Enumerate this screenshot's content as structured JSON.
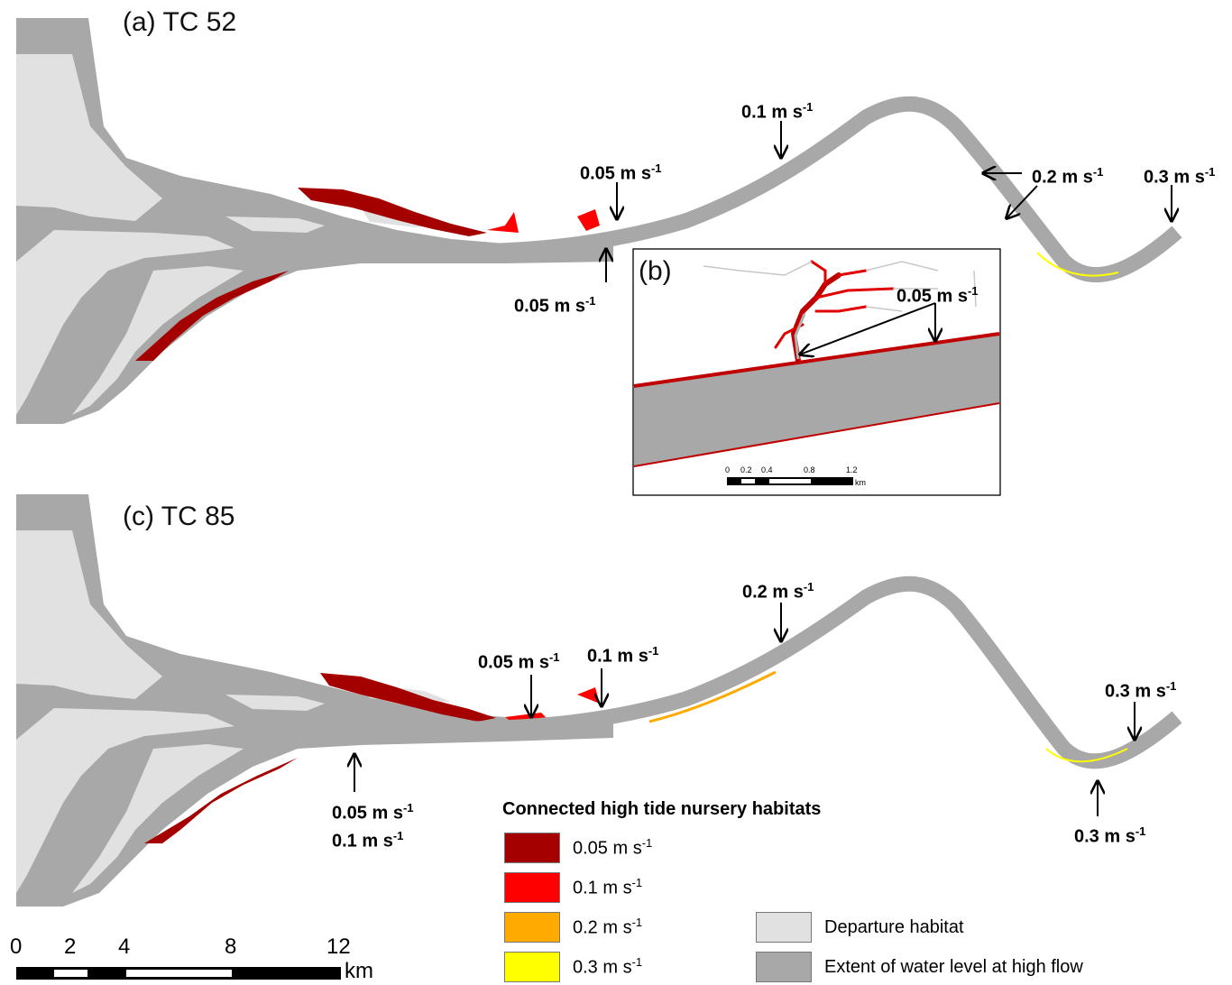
{
  "panels": {
    "a": {
      "label": "(a) TC 52"
    },
    "b": {
      "label": "(b)"
    },
    "c": {
      "label": "(c) TC 85"
    }
  },
  "annotations": {
    "a": [
      {
        "value": "0.1 m s",
        "sup": "-1"
      },
      {
        "value": "0.05 m s",
        "sup": "-1"
      },
      {
        "value": "0.2 m s",
        "sup": "-1"
      },
      {
        "value": "0.3 m s",
        "sup": "-1"
      },
      {
        "value": "0.05 m s",
        "sup": "-1"
      }
    ],
    "b": [
      {
        "value": "0.05 m s",
        "sup": "-1"
      }
    ],
    "c": [
      {
        "value": "0.2 m s",
        "sup": "-1"
      },
      {
        "value": "0.05 m s",
        "sup": "-1"
      },
      {
        "value": "0.1 m s",
        "sup": "-1"
      },
      {
        "value": "0.3 m s",
        "sup": "-1"
      },
      {
        "value": "0.05 m s",
        "sup": "-1"
      },
      {
        "value": "0.1 m s",
        "sup": "-1"
      },
      {
        "value": "0.3 m s",
        "sup": "-1"
      }
    ]
  },
  "legend": {
    "title": "Connected high tide nursery habitats",
    "items": [
      {
        "label": "0.05 m s",
        "sup": "-1",
        "color": "#a50000"
      },
      {
        "label": "0.1 m s",
        "sup": "-1",
        "color": "#ff0000"
      },
      {
        "label": "0.2 m s",
        "sup": "-1",
        "color": "#ffaa00"
      },
      {
        "label": "0.3 m s",
        "sup": "-1",
        "color": "#ffff00"
      }
    ],
    "extra": [
      {
        "label": "Departure habitat",
        "color": "#e1e1e1"
      },
      {
        "label": "Extent of water level at high flow",
        "color": "#a8a8a8"
      }
    ]
  },
  "scale_bar": {
    "ticks": [
      "0",
      "2",
      "4",
      "8",
      "12"
    ],
    "unit": "km"
  },
  "inset_scale_bar": {
    "ticks": [
      "0",
      "0.2",
      "0.4",
      "0.8",
      "1.2"
    ],
    "unit": "km"
  }
}
